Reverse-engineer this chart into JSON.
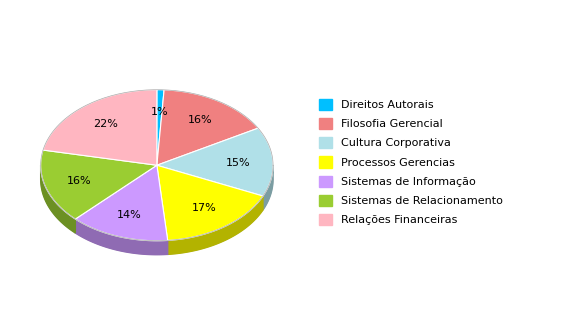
{
  "labels": [
    "Direitos Autorais",
    "Filosofia Gerencial",
    "Cultura Corporativa",
    "Processos Gerencias",
    "Sistemas de Informação",
    "Sistemas de Relacionamento",
    "Relações Financeiras"
  ],
  "values": [
    1,
    16,
    15,
    17,
    14,
    16,
    22
  ],
  "colors": [
    "#00BFFF",
    "#F08080",
    "#B0E0E8",
    "#FFFF00",
    "#CC99FF",
    "#9ACD32",
    "#FFB6C1"
  ],
  "edge_color": "#ffffff",
  "background_color": "#ffffff",
  "startangle": 90,
  "legend_fontsize": 8,
  "autopct_fontsize": 8,
  "pctdistance": 0.7,
  "shadow_color": "#888888",
  "depth": 0.08
}
